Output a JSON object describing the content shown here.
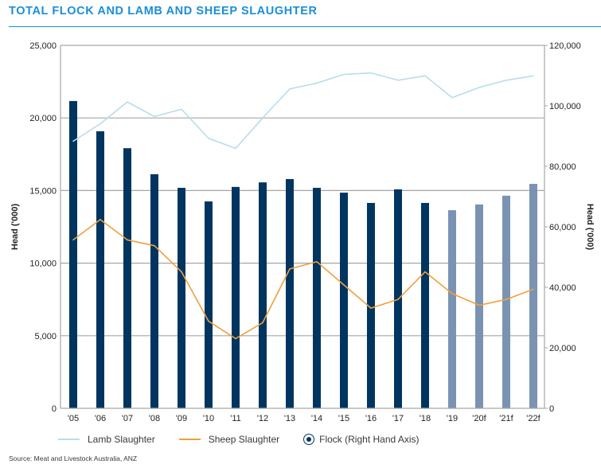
{
  "title": "TOTAL FLOCK AND LAMB AND SHEEP SLAUGHTER",
  "source": "Source: Meat and Livestock Australia, ANZ",
  "legend": {
    "lamb": "Lamb Slaughter",
    "sheep": "Sheep Slaughter",
    "flock": "Flock (Right Hand Axis)"
  },
  "colors": {
    "title": "#1a8fd8",
    "flock_actual": "#003560",
    "flock_forecast": "#7b93b3",
    "lamb": "#b9dcec",
    "sheep": "#f0a03c",
    "grid": "#a6a6a6"
  },
  "chart_data": {
    "type": "bar+line",
    "title": "TOTAL FLOCK AND LAMB AND SHEEP SLAUGHTER",
    "categories": [
      "'05",
      "'06",
      "'07",
      "'08",
      "'09",
      "'10",
      "'11",
      "'12",
      "'13",
      "'14",
      "'15",
      "'16",
      "'17",
      "'18",
      "'19",
      "'20f",
      "'21f",
      "'22f"
    ],
    "forecast_from_index": 14,
    "ylabel": "Head ('000)",
    "ylabel_right": "Head ('000)",
    "ylim": [
      0,
      25000
    ],
    "ylim_right": [
      0,
      120000
    ],
    "yticks": [
      "0",
      "5,000",
      "10,000",
      "15,000",
      "20,000",
      "25,000"
    ],
    "yticks_right": [
      "0",
      "20,000",
      "40,000",
      "60,000",
      "80,000",
      "100,000",
      "120,000"
    ],
    "ytick_values": [
      0,
      5000,
      10000,
      15000,
      20000,
      25000
    ],
    "ytick_values_right": [
      0,
      20000,
      40000,
      60000,
      80000,
      100000,
      120000
    ],
    "grid": true,
    "legend_position": "bottom",
    "series": [
      {
        "name": "Flock (Right Hand Axis)",
        "type": "bar",
        "axis": "right",
        "values": [
          101600,
          91600,
          86000,
          77400,
          72900,
          68400,
          73200,
          74700,
          75800,
          72900,
          71300,
          67900,
          72400,
          67900,
          65500,
          67400,
          70300,
          74200
        ]
      },
      {
        "name": "Lamb Slaughter",
        "type": "line",
        "axis": "left",
        "values": [
          18400,
          19600,
          21100,
          20100,
          20600,
          18600,
          17900,
          20000,
          22000,
          22400,
          23000,
          23100,
          22600,
          22900,
          21400,
          22100,
          22600,
          22900
        ]
      },
      {
        "name": "Sheep Slaughter",
        "type": "line",
        "axis": "left",
        "values": [
          11600,
          13000,
          11600,
          11200,
          9400,
          6000,
          4800,
          5900,
          9600,
          10100,
          8500,
          6900,
          7500,
          9400,
          7900,
          7100,
          7500,
          8200
        ]
      }
    ]
  }
}
